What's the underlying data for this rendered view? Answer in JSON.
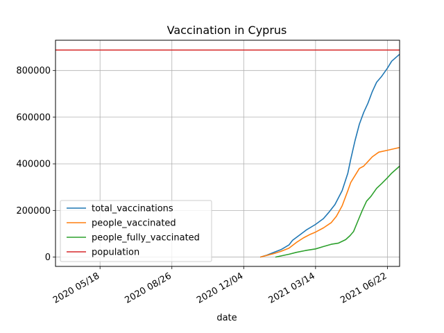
{
  "chart_data": {
    "type": "line",
    "title": "Vaccination in Cyprus",
    "xlabel": "date",
    "ylabel": "",
    "x_range": [
      "2020-03-17",
      "2021-07-09"
    ],
    "ylim": [
      -40000,
      930000
    ],
    "x_ticks": [
      {
        "date": "2020-05-18",
        "label": "2020 05/18"
      },
      {
        "date": "2020-08-26",
        "label": "2020 08/26"
      },
      {
        "date": "2020-12-04",
        "label": "2020 12/04"
      },
      {
        "date": "2021-03-14",
        "label": "2021 03/14"
      },
      {
        "date": "2021-06-22",
        "label": "2021 06/22"
      }
    ],
    "y_ticks": [
      {
        "value": 0,
        "label": "0"
      },
      {
        "value": 200000,
        "label": "200000"
      },
      {
        "value": 400000,
        "label": "400000"
      },
      {
        "value": 600000,
        "label": "600000"
      },
      {
        "value": 800000,
        "label": "800000"
      }
    ],
    "grid": true,
    "legend_position": "lower-left",
    "series": [
      {
        "name": "total_vaccinations",
        "color": "#1f77b4",
        "points": [
          [
            "2020-12-27",
            0
          ],
          [
            "2021-01-05",
            8000
          ],
          [
            "2021-01-15",
            20000
          ],
          [
            "2021-01-25",
            32000
          ],
          [
            "2021-02-05",
            52000
          ],
          [
            "2021-02-10",
            72000
          ],
          [
            "2021-02-20",
            95000
          ],
          [
            "2021-03-01",
            116000
          ],
          [
            "2021-03-14",
            140000
          ],
          [
            "2021-03-25",
            165000
          ],
          [
            "2021-04-01",
            190000
          ],
          [
            "2021-04-10",
            225000
          ],
          [
            "2021-04-20",
            285000
          ],
          [
            "2021-04-28",
            360000
          ],
          [
            "2021-05-02",
            420000
          ],
          [
            "2021-05-08",
            500000
          ],
          [
            "2021-05-14",
            570000
          ],
          [
            "2021-05-20",
            620000
          ],
          [
            "2021-05-26",
            660000
          ],
          [
            "2021-06-01",
            710000
          ],
          [
            "2021-06-07",
            750000
          ],
          [
            "2021-06-14",
            775000
          ],
          [
            "2021-06-22",
            810000
          ],
          [
            "2021-06-28",
            840000
          ],
          [
            "2021-07-09",
            870000
          ]
        ]
      },
      {
        "name": "people_vaccinated",
        "color": "#ff7f0e",
        "points": [
          [
            "2020-12-27",
            0
          ],
          [
            "2021-01-05",
            7000
          ],
          [
            "2021-01-15",
            15000
          ],
          [
            "2021-01-25",
            25000
          ],
          [
            "2021-02-05",
            38000
          ],
          [
            "2021-02-15",
            62000
          ],
          [
            "2021-02-25",
            82000
          ],
          [
            "2021-03-07",
            98000
          ],
          [
            "2021-03-14",
            107000
          ],
          [
            "2021-03-25",
            125000
          ],
          [
            "2021-04-05",
            148000
          ],
          [
            "2021-04-12",
            175000
          ],
          [
            "2021-04-20",
            220000
          ],
          [
            "2021-04-28",
            285000
          ],
          [
            "2021-05-02",
            320000
          ],
          [
            "2021-05-08",
            350000
          ],
          [
            "2021-05-14",
            380000
          ],
          [
            "2021-05-20",
            390000
          ],
          [
            "2021-05-26",
            410000
          ],
          [
            "2021-06-01",
            430000
          ],
          [
            "2021-06-10",
            450000
          ],
          [
            "2021-06-22",
            458000
          ],
          [
            "2021-07-09",
            470000
          ]
        ]
      },
      {
        "name": "people_fully_vaccinated",
        "color": "#2ca02c",
        "points": [
          [
            "2021-01-17",
            0
          ],
          [
            "2021-01-25",
            5000
          ],
          [
            "2021-02-05",
            12000
          ],
          [
            "2021-02-15",
            20000
          ],
          [
            "2021-02-28",
            28000
          ],
          [
            "2021-03-14",
            35000
          ],
          [
            "2021-03-25",
            45000
          ],
          [
            "2021-04-05",
            55000
          ],
          [
            "2021-04-15",
            60000
          ],
          [
            "2021-04-25",
            75000
          ],
          [
            "2021-05-01",
            92000
          ],
          [
            "2021-05-06",
            110000
          ],
          [
            "2021-05-12",
            155000
          ],
          [
            "2021-05-18",
            200000
          ],
          [
            "2021-05-24",
            240000
          ],
          [
            "2021-05-30",
            260000
          ],
          [
            "2021-06-07",
            295000
          ],
          [
            "2021-06-14",
            315000
          ],
          [
            "2021-06-22",
            340000
          ],
          [
            "2021-06-28",
            360000
          ],
          [
            "2021-07-09",
            390000
          ]
        ]
      },
      {
        "name": "population",
        "color": "#d62728",
        "constant_value": 888000
      }
    ]
  }
}
